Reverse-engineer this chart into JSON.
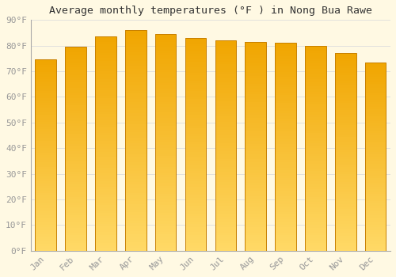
{
  "title": "Average monthly temperatures (°F ) in Nong Bua Rawe",
  "months": [
    "Jan",
    "Feb",
    "Mar",
    "Apr",
    "May",
    "Jun",
    "Jul",
    "Aug",
    "Sep",
    "Oct",
    "Nov",
    "Dec"
  ],
  "values": [
    74.5,
    79.5,
    83.5,
    86.0,
    84.5,
    83.0,
    82.0,
    81.5,
    81.0,
    80.0,
    77.0,
    73.5
  ],
  "bar_color_top": "#F0A500",
  "bar_color_bottom": "#FFD966",
  "bar_edge_color": "#C88000",
  "background_color": "#FFF9E3",
  "grid_color": "#DDDDDD",
  "title_fontsize": 9.5,
  "tick_fontsize": 8,
  "ylim": [
    0,
    90
  ],
  "yticks": [
    0,
    10,
    20,
    30,
    40,
    50,
    60,
    70,
    80,
    90
  ],
  "bar_width": 0.7,
  "n_grad": 80
}
